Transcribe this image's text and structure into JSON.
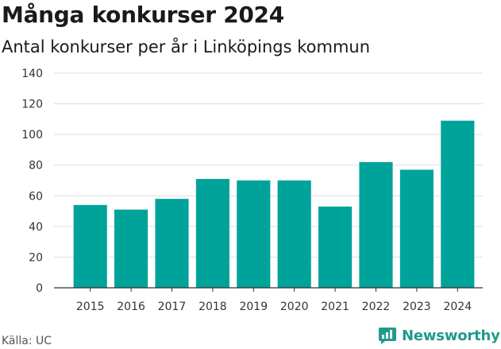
{
  "page": {
    "title": "Många konkurser 2024",
    "subtitle": "Antal konkurser per år i Linköpings kommun",
    "source": "Källa: UC",
    "brand_name": "Newsworthy"
  },
  "colors": {
    "bar": "#00a39a",
    "grid": "#dddddd",
    "axis": "#333333",
    "brand": "#1f9a8e"
  },
  "chart_data": {
    "type": "bar",
    "title": "Många konkurser 2024",
    "subtitle": "Antal konkurser per år i Linköpings kommun",
    "xlabel": "",
    "ylabel": "",
    "categories": [
      "2015",
      "2016",
      "2017",
      "2018",
      "2019",
      "2020",
      "2021",
      "2022",
      "2023",
      "2024"
    ],
    "values": [
      54,
      51,
      58,
      71,
      70,
      70,
      53,
      82,
      77,
      109
    ],
    "ylim": [
      0,
      140
    ],
    "yticks": [
      0,
      20,
      40,
      60,
      80,
      100,
      120,
      140
    ],
    "grid": true,
    "legend": "none"
  }
}
